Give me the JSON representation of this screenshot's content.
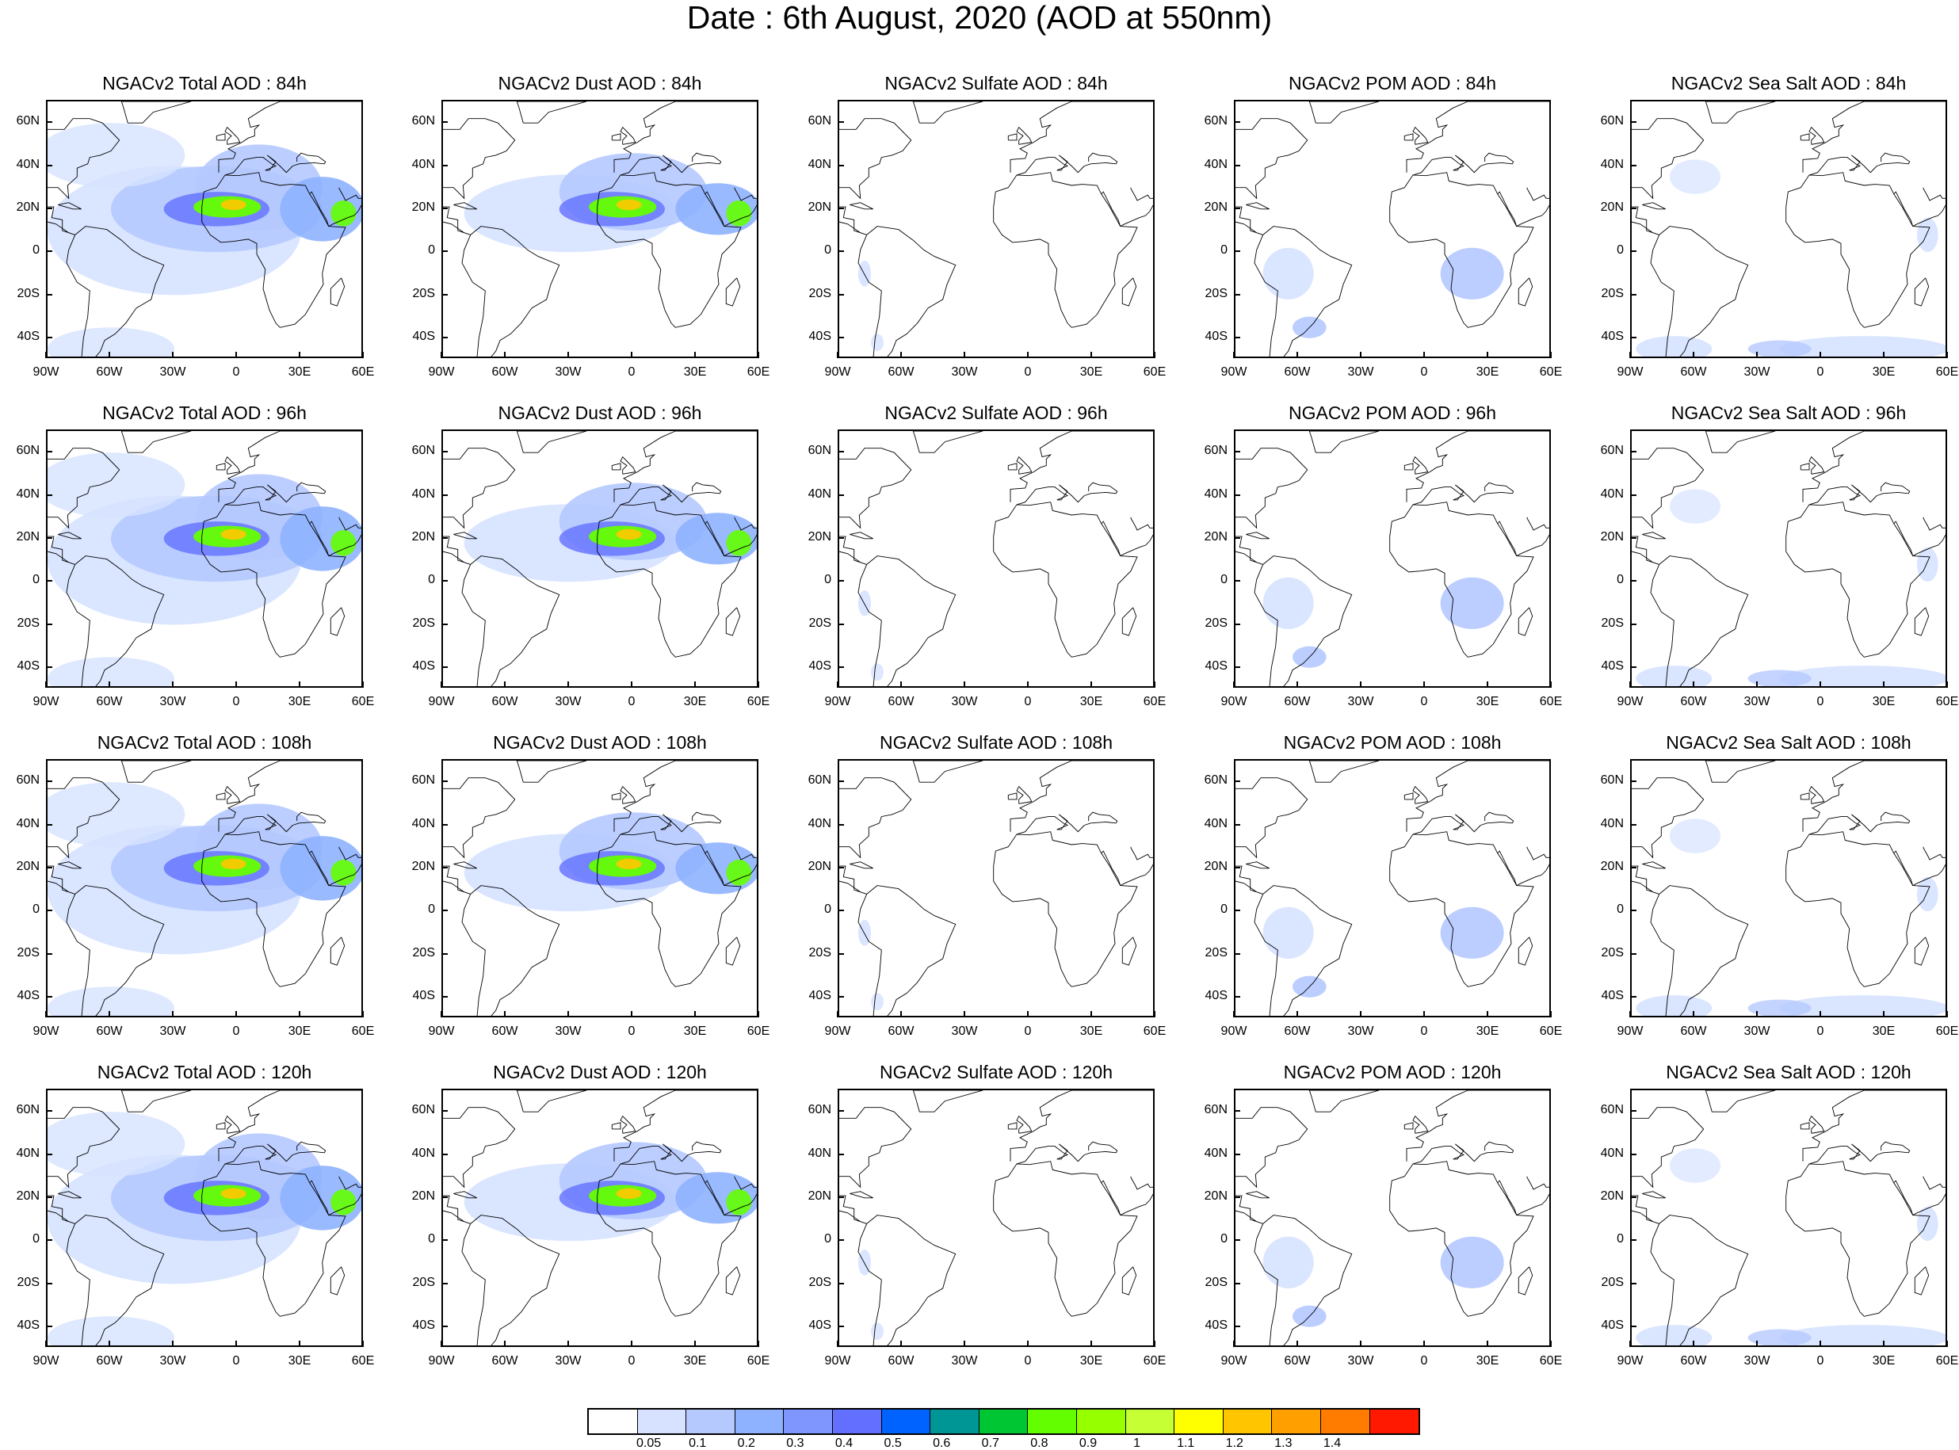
{
  "title": "Date : 6th August, 2020 (AOD at 550nm)",
  "rows": [
    {
      "panels": [
        {
          "title": "NGACv2 Total AOD : 84h",
          "species": "total"
        },
        {
          "title": "NGACv2 Dust AOD : 84h",
          "species": "dust"
        },
        {
          "title": "NGACv2 Sulfate AOD : 84h",
          "species": "sulfate"
        },
        {
          "title": "NGACv2 POM AOD : 84h",
          "species": "pom"
        },
        {
          "title": "NGACv2 Sea Salt AOD : 84h",
          "species": "seasalt"
        }
      ]
    },
    {
      "panels": [
        {
          "title": "NGACv2 Total AOD : 96h",
          "species": "total"
        },
        {
          "title": "NGACv2 Dust AOD : 96h",
          "species": "dust"
        },
        {
          "title": "NGACv2 Sulfate AOD : 96h",
          "species": "sulfate"
        },
        {
          "title": "NGACv2 POM AOD : 96h",
          "species": "pom"
        },
        {
          "title": "NGACv2 Sea Salt AOD : 96h",
          "species": "seasalt"
        }
      ]
    },
    {
      "panels": [
        {
          "title": "NGACv2 Total AOD : 108h",
          "species": "total"
        },
        {
          "title": "NGACv2 Dust AOD : 108h",
          "species": "dust"
        },
        {
          "title": "NGACv2 Sulfate AOD : 108h",
          "species": "sulfate"
        },
        {
          "title": "NGACv2 POM AOD : 108h",
          "species": "pom"
        },
        {
          "title": "NGACv2 Sea Salt AOD : 108h",
          "species": "seasalt"
        }
      ]
    },
    {
      "panels": [
        {
          "title": "NGACv2 Total AOD : 120h",
          "species": "total"
        },
        {
          "title": "NGACv2 Dust AOD : 120h",
          "species": "dust"
        },
        {
          "title": "NGACv2 Sulfate AOD : 120h",
          "species": "sulfate"
        },
        {
          "title": "NGACv2 POM AOD : 120h",
          "species": "pom"
        },
        {
          "title": "NGACv2 Sea Salt  AOD : 120h",
          "species": "seasalt"
        }
      ]
    }
  ],
  "lat_labels": [
    "60N",
    "40N",
    "20N",
    "0",
    "20S",
    "40S"
  ],
  "lon_labels": [
    "90W",
    "60W",
    "30W",
    "0",
    "30E",
    "60E"
  ],
  "map_extent": {
    "lon": [
      -90,
      60
    ],
    "lat": [
      -50,
      70
    ]
  },
  "colorbar": {
    "labels": [
      "0.05",
      "0.1",
      "0.2",
      "0.3",
      "0.4",
      "0.5",
      "0.6",
      "0.7",
      "0.8",
      "0.9",
      "1",
      "1.1",
      "1.2",
      "1.3",
      "1.4"
    ],
    "colors": [
      "#ffffff",
      "#d6e2ff",
      "#b5c9ff",
      "#8eb2ff",
      "#7f96ff",
      "#6370ff",
      "#0063ff",
      "#009696",
      "#00c633",
      "#63ff00",
      "#96ff00",
      "#c6ff33",
      "#ffff00",
      "#ffc600",
      "#ffa000",
      "#ff7c00",
      "#ff1900"
    ]
  }
}
